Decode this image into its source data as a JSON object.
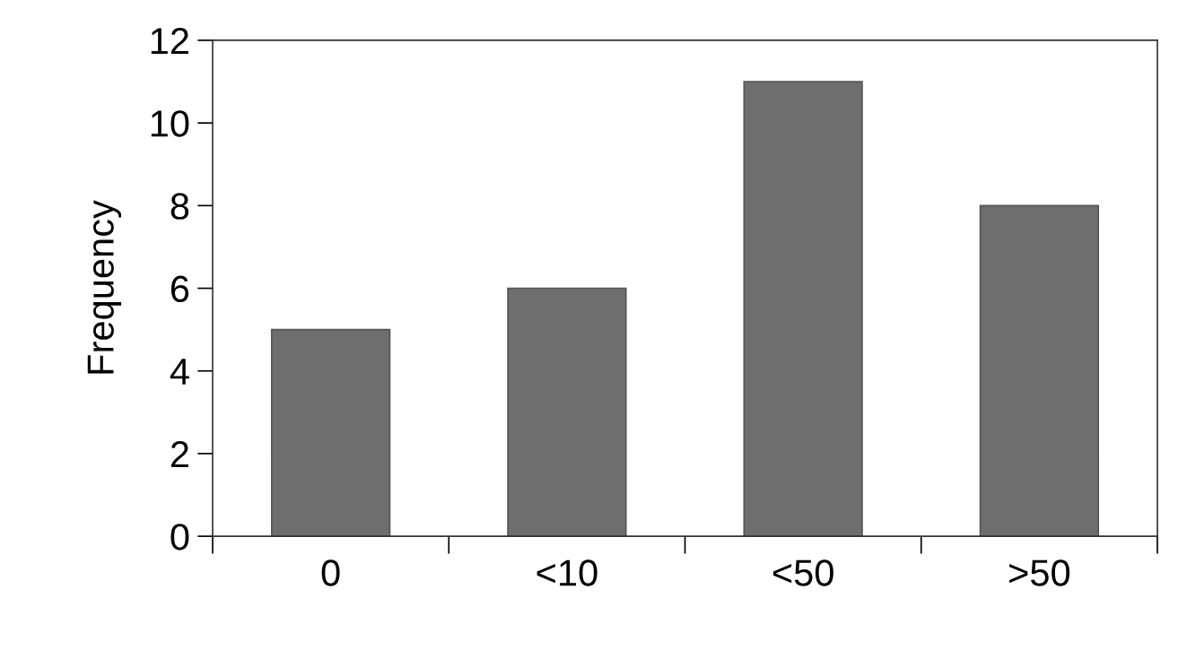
{
  "chart_data": {
    "type": "bar",
    "ylabel": "Frequency",
    "categories": [
      "0",
      "<10",
      "<50",
      ">50"
    ],
    "values": [
      5,
      6,
      11,
      8
    ],
    "color": "#6e6e6e",
    "ylim": [
      0,
      12
    ],
    "yticks": [
      0,
      2,
      4,
      6,
      8,
      10,
      12
    ],
    "grid": false,
    "legend": false
  }
}
